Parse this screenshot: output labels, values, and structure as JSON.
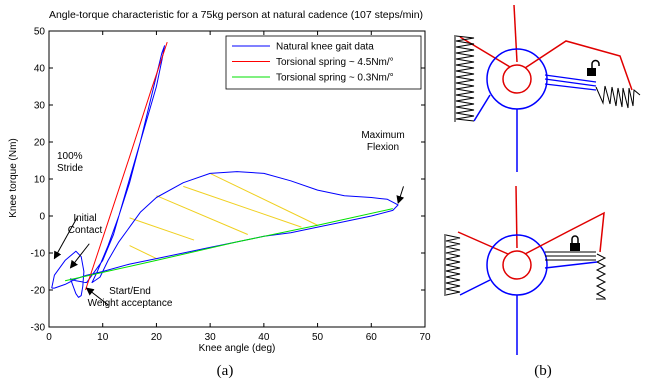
{
  "chart_data": {
    "type": "line",
    "title": "Angle-torque characteristic for a 75kg person at natural cadence (107 steps/min)",
    "xlabel": "Knee angle (deg)",
    "ylabel": "Knee torque (Nm)",
    "xlim": [
      0,
      70
    ],
    "ylim": [
      -30,
      50
    ],
    "xticks": [
      "0",
      "10",
      "20",
      "30",
      "40",
      "50",
      "60",
      "70"
    ],
    "yticks": [
      "-30",
      "-20",
      "-10",
      "0",
      "10",
      "20",
      "30",
      "40",
      "50"
    ],
    "grid": false,
    "legend_position": "top-right",
    "series": [
      {
        "name": "Natural knee gait data",
        "color": "#0000ff",
        "points": [
          [
            0.5,
            -19.5
          ],
          [
            1,
            -16
          ],
          [
            3,
            -12
          ],
          [
            5,
            -9.5
          ],
          [
            6,
            -11
          ],
          [
            6.5,
            -15
          ],
          [
            6.3,
            -19
          ],
          [
            6,
            -21.5
          ],
          [
            5.5,
            -22
          ],
          [
            5,
            -21
          ],
          [
            4.5,
            -19
          ],
          [
            4,
            -17
          ],
          [
            5,
            -17.5
          ],
          [
            7,
            -18
          ],
          [
            8,
            -16
          ],
          [
            10,
            -12
          ],
          [
            12,
            -5
          ],
          [
            14,
            5
          ],
          [
            16,
            15
          ],
          [
            18,
            25
          ],
          [
            20,
            35
          ],
          [
            21,
            42
          ],
          [
            21.5,
            46
          ],
          [
            21,
            44
          ],
          [
            19,
            32
          ],
          [
            17,
            20
          ],
          [
            15,
            9
          ],
          [
            13,
            0
          ],
          [
            11,
            -8
          ],
          [
            9,
            -15
          ],
          [
            8,
            -18
          ],
          [
            9.5,
            -16.5
          ],
          [
            11,
            -12
          ],
          [
            13,
            -7
          ],
          [
            15,
            -3
          ],
          [
            17,
            1
          ],
          [
            20,
            5
          ],
          [
            25,
            9
          ],
          [
            30,
            11.5
          ],
          [
            35,
            12
          ],
          [
            40,
            11.5
          ],
          [
            45,
            9.5
          ],
          [
            50,
            7
          ],
          [
            55,
            5.5
          ],
          [
            60,
            5
          ],
          [
            63,
            4.5
          ],
          [
            65,
            3
          ],
          [
            64,
            1.5
          ],
          [
            60,
            0
          ],
          [
            55,
            -1.5
          ],
          [
            50,
            -3
          ],
          [
            45,
            -4.5
          ],
          [
            40,
            -5.5
          ],
          [
            35,
            -7
          ],
          [
            30,
            -8.5
          ],
          [
            25,
            -10
          ],
          [
            20,
            -11.5
          ],
          [
            15,
            -13
          ],
          [
            10,
            -15
          ],
          [
            7,
            -16
          ],
          [
            5,
            -17
          ],
          [
            3,
            -18.5
          ],
          [
            1,
            -19.5
          ],
          [
            0.5,
            -19.5
          ]
        ]
      },
      {
        "name": "Torsional spring ~ 4.5Nm/°",
        "color": "#ff0000",
        "points": [
          [
            6.8,
            -20
          ],
          [
            10,
            -6
          ],
          [
            15,
            16
          ],
          [
            19,
            34
          ],
          [
            21.2,
            43.5
          ],
          [
            22,
            47
          ]
        ]
      },
      {
        "name": "Torsional spring ~ 0.3Nm/°",
        "color": "#00e000",
        "points": [
          [
            3,
            -17.5
          ],
          [
            20,
            -12
          ],
          [
            35,
            -7
          ],
          [
            50,
            -2.5
          ],
          [
            64,
            2
          ]
        ]
      }
    ],
    "hatch_segments": [
      [
        [
          15,
          -8
        ],
        [
          20,
          -11.5
        ]
      ],
      [
        [
          15,
          -0.5
        ],
        [
          27,
          -6.5
        ]
      ],
      [
        [
          20,
          5.5
        ],
        [
          37,
          -5
        ]
      ],
      [
        [
          25,
          8
        ],
        [
          47,
          -3
        ]
      ],
      [
        [
          30,
          11.5
        ],
        [
          50,
          -2.5
        ]
      ]
    ],
    "annotations": [
      {
        "text": [
          "100%",
          "Stride"
        ],
        "from": [
          5.2,
          -0.5
        ],
        "to": [
          1,
          -11.5
        ]
      },
      {
        "text": [
          "Initial",
          "Contact"
        ],
        "from": [
          7.5,
          -7.5
        ],
        "to": [
          4,
          -14
        ]
      },
      {
        "text": [
          "Start/End",
          "Weight acceptance"
        ],
        "from": [
          11,
          -24
        ],
        "to": [
          7,
          -19.5
        ]
      },
      {
        "text": [
          "Maximum",
          "Flexion"
        ],
        "from": [
          66,
          8
        ],
        "to": [
          65,
          3.5
        ]
      }
    ]
  },
  "captions": {
    "a": "(a)",
    "b": "(b)"
  }
}
